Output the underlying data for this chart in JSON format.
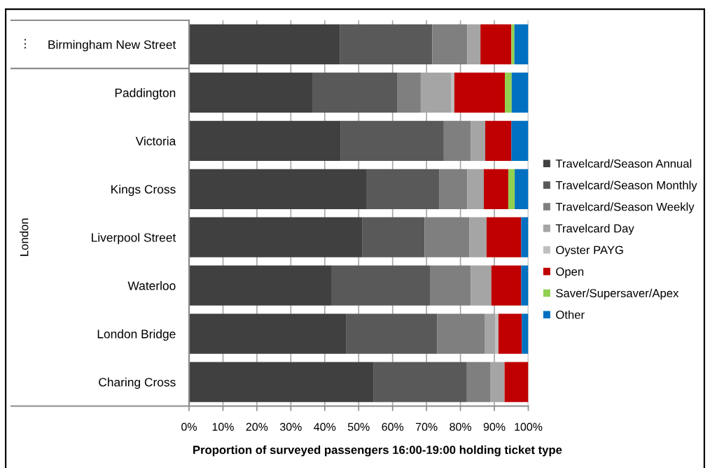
{
  "chart_data": {
    "type": "bar",
    "orientation": "horizontal",
    "stacked": true,
    "categories": [
      "Birmingham New Street",
      "Paddington",
      "Victoria",
      "Kings Cross",
      "Liverpool Street",
      "Waterloo",
      "London Bridge",
      "Charing Cross"
    ],
    "series": [
      {
        "name": "Travelcard/Season Annual",
        "color": "#404040",
        "values": [
          44.4,
          36.5,
          44.6,
          52.4,
          51.0,
          41.9,
          46.4,
          54.3
        ]
      },
      {
        "name": "Travelcard/Season Monthly",
        "color": "#595959",
        "values": [
          27.3,
          24.8,
          30.5,
          21.3,
          18.4,
          29.1,
          26.7,
          27.6
        ]
      },
      {
        "name": "Travelcard/Season Weekly",
        "color": "#7f7f7f",
        "values": [
          10.3,
          7.0,
          8.0,
          8.3,
          13.2,
          12.0,
          14.0,
          7.0
        ]
      },
      {
        "name": "Travelcard Day",
        "color": "#a5a5a5",
        "values": [
          3.9,
          8.9,
          4.2,
          4.9,
          5.1,
          6.1,
          3.1,
          4.1
        ]
      },
      {
        "name": "Oyster PAYG",
        "color": "#bfbfbf",
        "values": [
          0,
          1.0,
          0,
          0,
          0,
          0,
          1.0,
          0
        ]
      },
      {
        "name": "Open",
        "color": "#c00000",
        "values": [
          9.1,
          14.9,
          7.7,
          7.2,
          10.2,
          8.8,
          6.9,
          7.0
        ]
      },
      {
        "name": "Saver/Supersaver/Apex",
        "color": "#92d050",
        "values": [
          0.9,
          2.0,
          0,
          1.9,
          0,
          0,
          0,
          0
        ]
      },
      {
        "name": "Other",
        "color": "#0070c0",
        "values": [
          4.1,
          4.9,
          5.0,
          4.0,
          2.1,
          2.1,
          1.9,
          0
        ]
      }
    ],
    "xlabel": "Proportion of surveyed passengers 16:00-19:00 holding ticket type",
    "xlim": [
      0,
      100
    ],
    "xticks": [
      {
        "value": 0,
        "label": "0%"
      },
      {
        "value": 10,
        "label": "10%"
      },
      {
        "value": 20,
        "label": "20%"
      },
      {
        "value": 30,
        "label": "30%"
      },
      {
        "value": 40,
        "label": "40%"
      },
      {
        "value": 50,
        "label": "50%"
      },
      {
        "value": 60,
        "label": "60%"
      },
      {
        "value": 70,
        "label": "70%"
      },
      {
        "value": 80,
        "label": "80%"
      },
      {
        "value": 90,
        "label": "90%"
      },
      {
        "value": 100,
        "label": "100%"
      }
    ],
    "annotations": [
      "⋮",
      "London"
    ],
    "grid": "x",
    "legend": "right"
  }
}
